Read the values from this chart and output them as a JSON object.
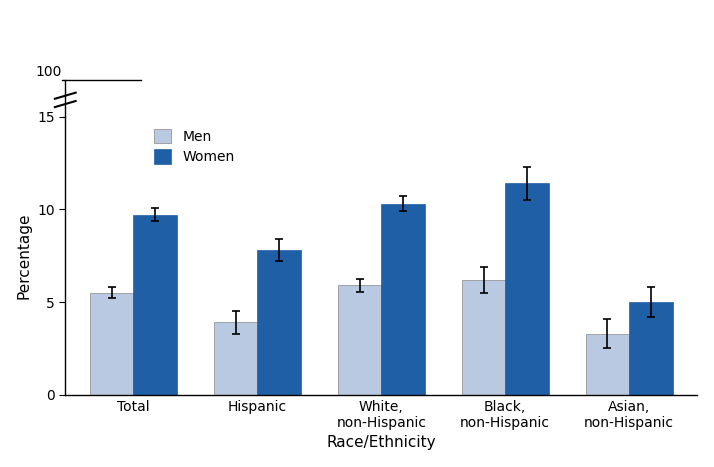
{
  "categories": [
    "Total",
    "Hispanic",
    "White,\nnon-Hispanic",
    "Black,\nnon-Hispanic",
    "Asian,\nnon-Hispanic"
  ],
  "men_values": [
    5.5,
    3.9,
    5.9,
    6.2,
    3.3
  ],
  "women_values": [
    9.7,
    7.8,
    10.3,
    11.4,
    5.0
  ],
  "men_errors": [
    0.3,
    0.6,
    0.35,
    0.7,
    0.8
  ],
  "women_errors": [
    0.35,
    0.6,
    0.4,
    0.9,
    0.8
  ],
  "men_color": "#b8c9e1",
  "women_color": "#1f5fa6",
  "xlabel": "Race/Ethnicity",
  "ylabel": "Percentage",
  "ylim": [
    0,
    15
  ],
  "yticks": [
    0,
    5,
    10,
    15
  ],
  "bar_width": 0.35,
  "legend_men_label": "Men",
  "legend_women_label": "Women",
  "error_capsize": 3,
  "error_color": "black",
  "error_linewidth": 1.2,
  "label_100": "100",
  "tick_fontsize": 10,
  "label_fontsize": 11
}
